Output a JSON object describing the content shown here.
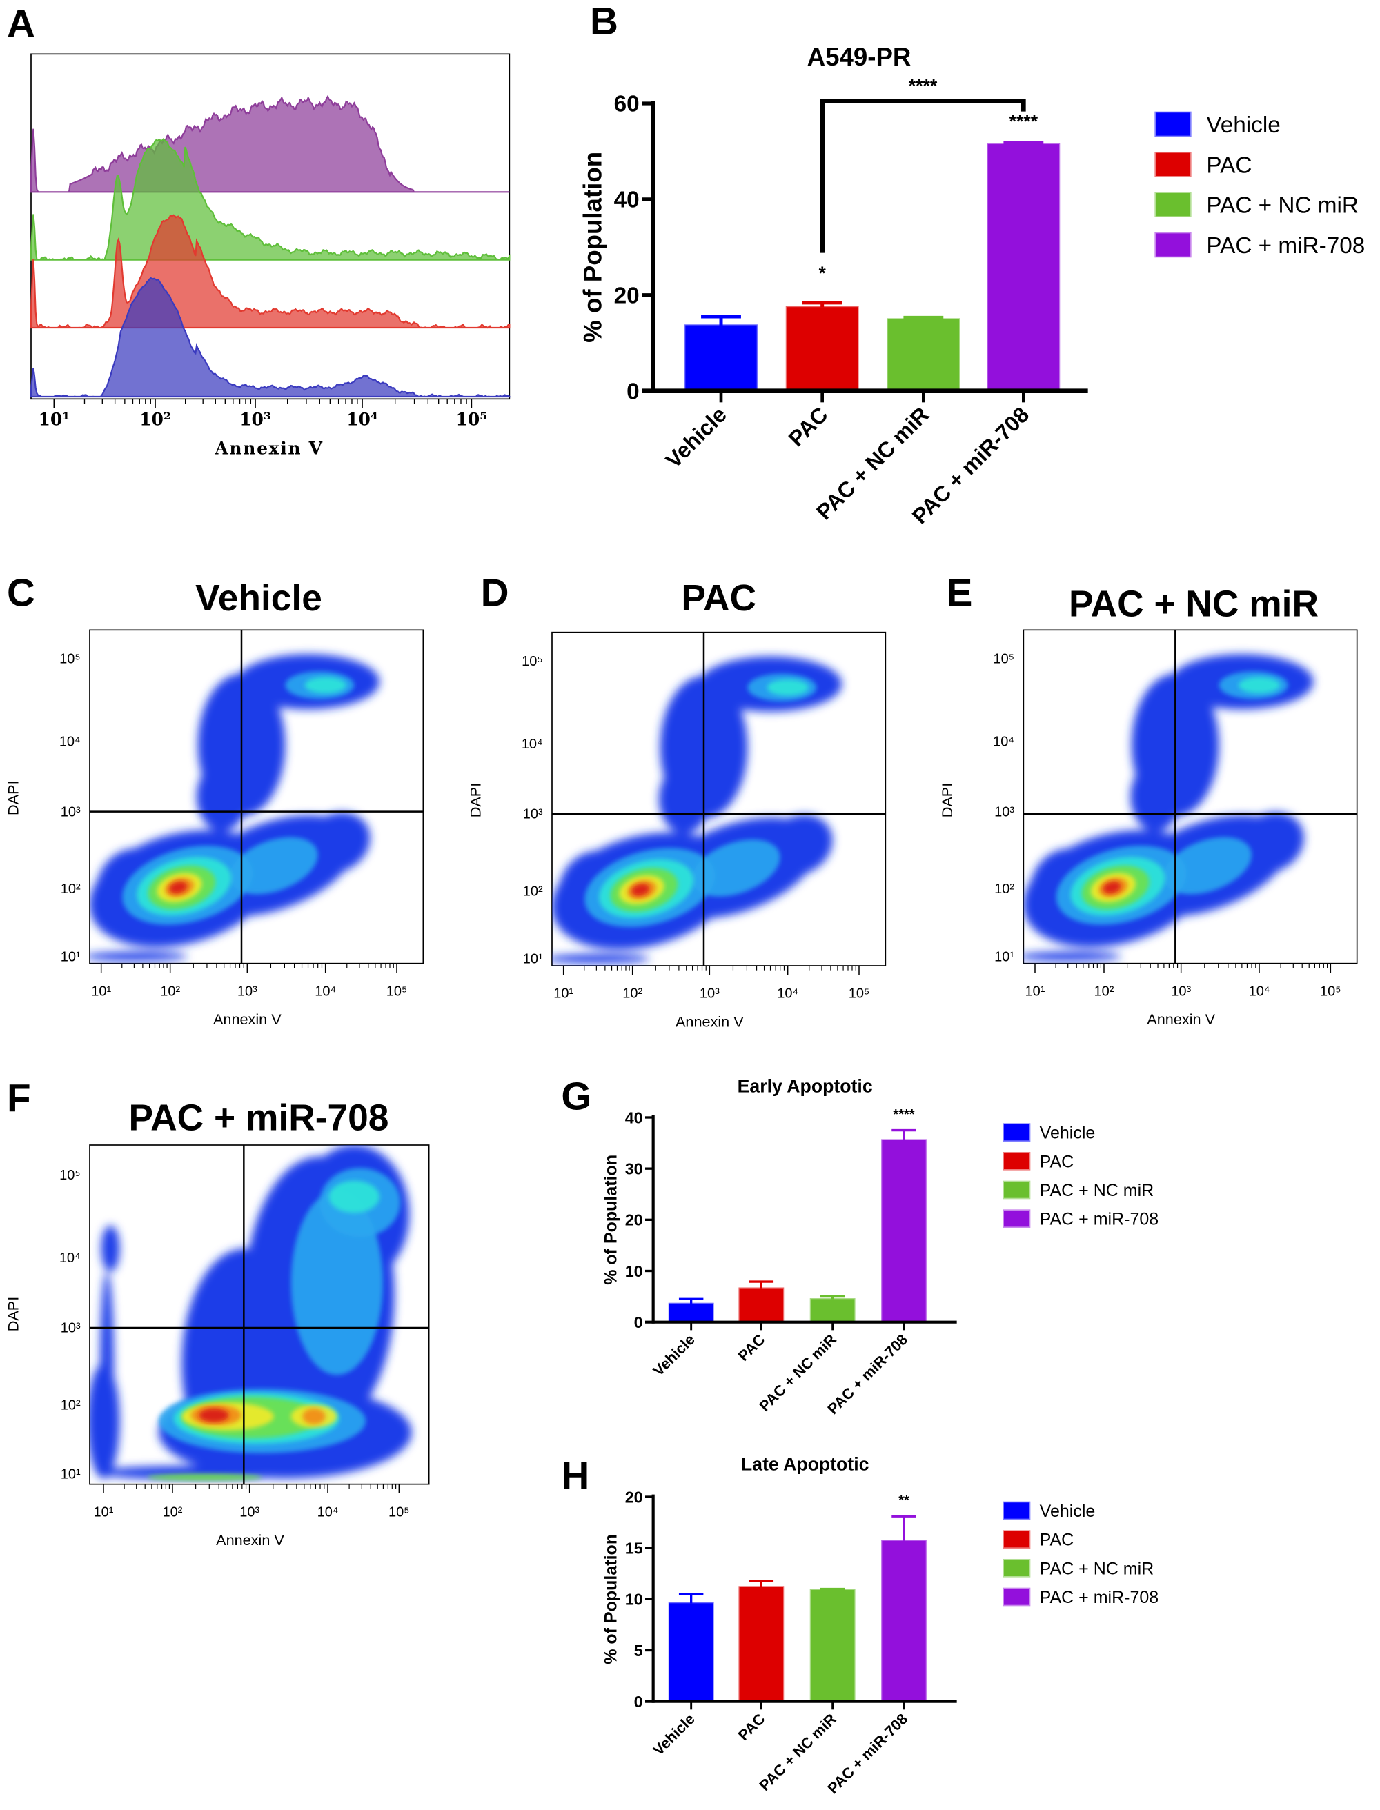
{
  "panels": {
    "A": "A",
    "B": "B",
    "C": "C",
    "D": "D",
    "E": "E",
    "F": "F",
    "G": "G",
    "H": "H"
  },
  "colors": {
    "Vehicle": "#0000ff",
    "PAC": "#dd0000",
    "PAC + NC miR": "#6abf2e",
    "PAC + miR-708": "#9310dc"
  },
  "chart_data": [
    {
      "id": "A",
      "type": "area",
      "title": "",
      "xlabel": "Annexin V",
      "x_scale": "log",
      "xlim": [
        10,
        100000
      ],
      "x_tick_labels": [
        "10¹",
        "10²",
        "10³",
        "10⁴",
        "10⁵"
      ],
      "series_colors": [
        "#8e3d9a",
        "#5fbf3a",
        "#e23a30",
        "#3b3bbf"
      ],
      "grid": false
    },
    {
      "id": "B",
      "type": "bar",
      "title": "A549-PR",
      "ylabel": "% of Population",
      "ylim": [
        0,
        60
      ],
      "y_ticks": [
        0,
        20,
        40,
        60
      ],
      "categories": [
        "Vehicle",
        "PAC",
        "PAC + NC miR",
        "PAC + miR-708"
      ],
      "values": [
        13.7,
        17.5,
        15.0,
        51.5
      ],
      "error_upper": [
        15.5,
        18.4,
        15.3,
        51.8
      ],
      "significance": [
        "",
        "*",
        "",
        "****"
      ],
      "bracket": {
        "from": "PAC",
        "to": "PAC + miR-708",
        "label": "****"
      },
      "legend": [
        "Vehicle",
        "PAC",
        "PAC + NC miR",
        "PAC + miR-708"
      ],
      "legend_placement": "right"
    },
    {
      "id": "C",
      "type": "heatmap",
      "title": "Vehicle",
      "xlabel": "Annexin V",
      "ylabel": "DAPI",
      "x_scale": "log",
      "y_scale": "log",
      "x_tick_labels": [
        "10¹",
        "10²",
        "10³",
        "10⁴",
        "10⁵"
      ],
      "y_tick_labels": [
        "10¹",
        "10²",
        "10³",
        "10⁴",
        "10⁵"
      ],
      "quadrant_gate": {
        "x": 1000,
        "y": 1000
      }
    },
    {
      "id": "D",
      "type": "heatmap",
      "title": "PAC",
      "xlabel": "Annexin V",
      "ylabel": "DAPI",
      "x_scale": "log",
      "y_scale": "log",
      "x_tick_labels": [
        "10¹",
        "10²",
        "10³",
        "10⁴",
        "10⁵"
      ],
      "y_tick_labels": [
        "10¹",
        "10²",
        "10³",
        "10⁴",
        "10⁵"
      ],
      "quadrant_gate": {
        "x": 1000,
        "y": 1000
      }
    },
    {
      "id": "E",
      "type": "heatmap",
      "title": "PAC + NC miR",
      "xlabel": "Annexin V",
      "ylabel": "DAPI",
      "x_scale": "log",
      "y_scale": "log",
      "x_tick_labels": [
        "10¹",
        "10²",
        "10³",
        "10⁴",
        "10⁵"
      ],
      "y_tick_labels": [
        "10¹",
        "10²",
        "10³",
        "10⁴",
        "10⁵"
      ],
      "quadrant_gate": {
        "x": 1000,
        "y": 1000
      }
    },
    {
      "id": "F",
      "type": "heatmap",
      "title": "PAC + miR-708",
      "xlabel": "Annexin V",
      "ylabel": "DAPI",
      "x_scale": "log",
      "y_scale": "log",
      "x_tick_labels": [
        "10¹",
        "10²",
        "10³",
        "10⁴",
        "10⁵"
      ],
      "y_tick_labels": [
        "10¹",
        "10²",
        "10³",
        "10⁴",
        "10⁵"
      ],
      "quadrant_gate": {
        "x": 1000,
        "y": 1000
      }
    },
    {
      "id": "G",
      "type": "bar",
      "title": "Early Apoptotic",
      "ylabel": "% of Population",
      "ylim": [
        0,
        40
      ],
      "y_ticks": [
        0,
        10,
        20,
        30,
        40
      ],
      "categories": [
        "Vehicle",
        "PAC",
        "PAC + NC miR",
        "PAC + miR-708"
      ],
      "values": [
        3.6,
        6.6,
        4.5,
        35.6
      ],
      "error_upper": [
        4.5,
        7.9,
        5.0,
        37.5
      ],
      "significance": [
        "",
        "",
        "",
        "****"
      ],
      "legend": [
        "Vehicle",
        "PAC",
        "PAC + NC miR",
        "PAC + miR-708"
      ],
      "legend_placement": "right"
    },
    {
      "id": "H",
      "type": "bar",
      "title": "Late Apoptotic",
      "ylabel": "% of Population",
      "ylim": [
        0,
        20
      ],
      "y_ticks": [
        0,
        5,
        10,
        15,
        20
      ],
      "categories": [
        "Vehicle",
        "PAC",
        "PAC + NC miR",
        "PAC + miR-708"
      ],
      "values": [
        9.6,
        11.2,
        10.9,
        15.7
      ],
      "error_upper": [
        10.5,
        11.8,
        11.0,
        18.1
      ],
      "significance": [
        "",
        "",
        "",
        "**"
      ],
      "legend": [
        "Vehicle",
        "PAC",
        "PAC + NC miR",
        "PAC + miR-708"
      ],
      "legend_placement": "right"
    }
  ]
}
